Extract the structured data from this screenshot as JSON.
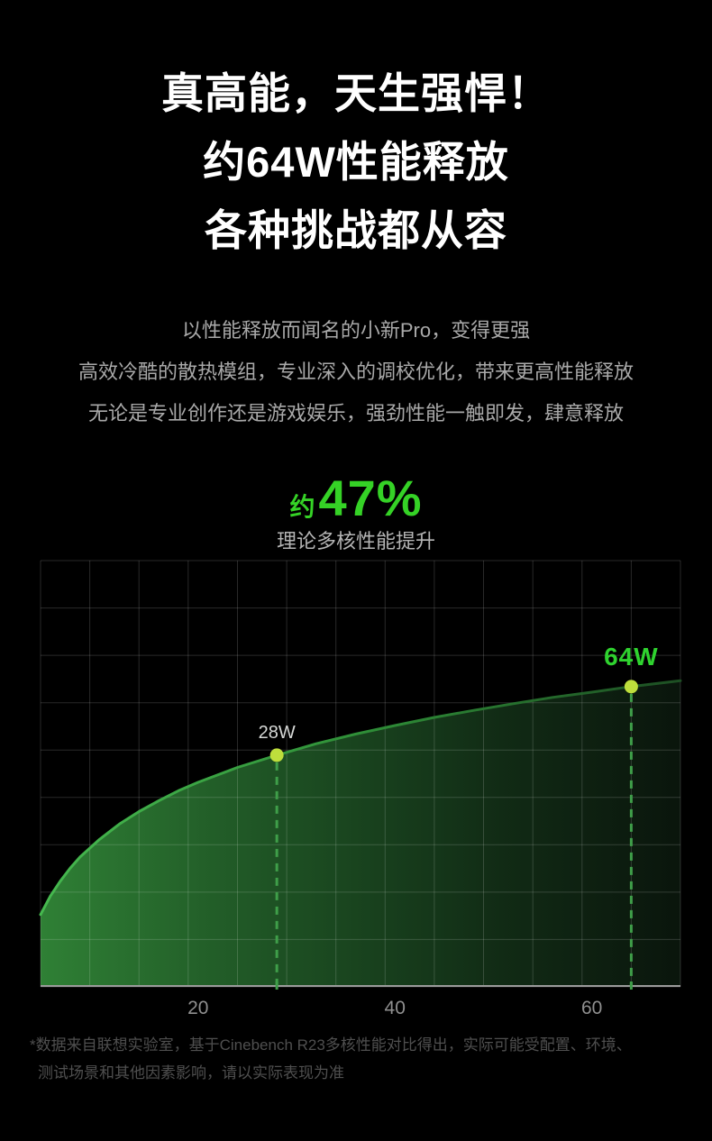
{
  "page": {
    "background": "#000000",
    "accent_green": "#35d226",
    "title": {
      "lines": [
        "真高能，天生强悍！",
        "约64W性能释放",
        "各种挑战都从容"
      ]
    },
    "subtitle": {
      "lines": [
        "以性能释放而闻名的小新Pro，变得更强",
        "高效冷酷的散热模组，专业深入的调校优化，带来更高性能释放",
        "无论是专业创作还是游戏娱乐，强劲性能一触即发，肆意释放"
      ]
    },
    "stat": {
      "prefix": "约",
      "value": "47%",
      "caption": "理论多核性能提升"
    },
    "footnote": {
      "lines": [
        "*数据来自联想实验室，基于Cinebench R23多核性能对比得出，实际可能受配置、环境、",
        "测试场景和其他因素影响，请以实际表现为准"
      ]
    }
  },
  "chart_data": {
    "type": "area",
    "title": "",
    "xlabel": "",
    "ylabel": "",
    "x_unit": "W",
    "xlim": [
      4,
      69
    ],
    "ylim": [
      0,
      115
    ],
    "x_ticks": [
      20,
      40,
      60
    ],
    "x": [
      4,
      5,
      6,
      7,
      8,
      10,
      12,
      14,
      16,
      18,
      20,
      24,
      28,
      32,
      36,
      40,
      44,
      48,
      52,
      56,
      60,
      64,
      69
    ],
    "y": [
      19.5,
      24.5,
      28.5,
      32,
      35,
      39.8,
      43.9,
      47.3,
      50.2,
      52.9,
      55.2,
      59.2,
      62.5,
      65.6,
      68.2,
      70.5,
      72.7,
      74.6,
      76.4,
      78.1,
      79.5,
      81,
      82.6
    ],
    "markers": [
      {
        "x": 28,
        "y": 62.5,
        "label": "28W",
        "style": "dim"
      },
      {
        "x": 64,
        "y": 81,
        "label": "64W",
        "style": "accent"
      }
    ],
    "grid": {
      "cols": 13,
      "rows": 9,
      "color": "rgba(255,255,255,0.16)"
    },
    "colors": {
      "axis": "#9b9b9b",
      "tick_label": "#8f8f8f",
      "dash": "#3f9e49",
      "dot": "#bede3c",
      "accent_label": "#2fd32f",
      "fill_stops": [
        "#2f8035",
        "#1d5023",
        "#112b15",
        "#0a150c"
      ],
      "fill_offsets": [
        0,
        0.38,
        0.72,
        1
      ],
      "line_stops": [
        "#46b94f",
        "#2f8f38",
        "#1d4f23"
      ],
      "line_offsets": [
        0,
        0.5,
        1
      ]
    }
  }
}
